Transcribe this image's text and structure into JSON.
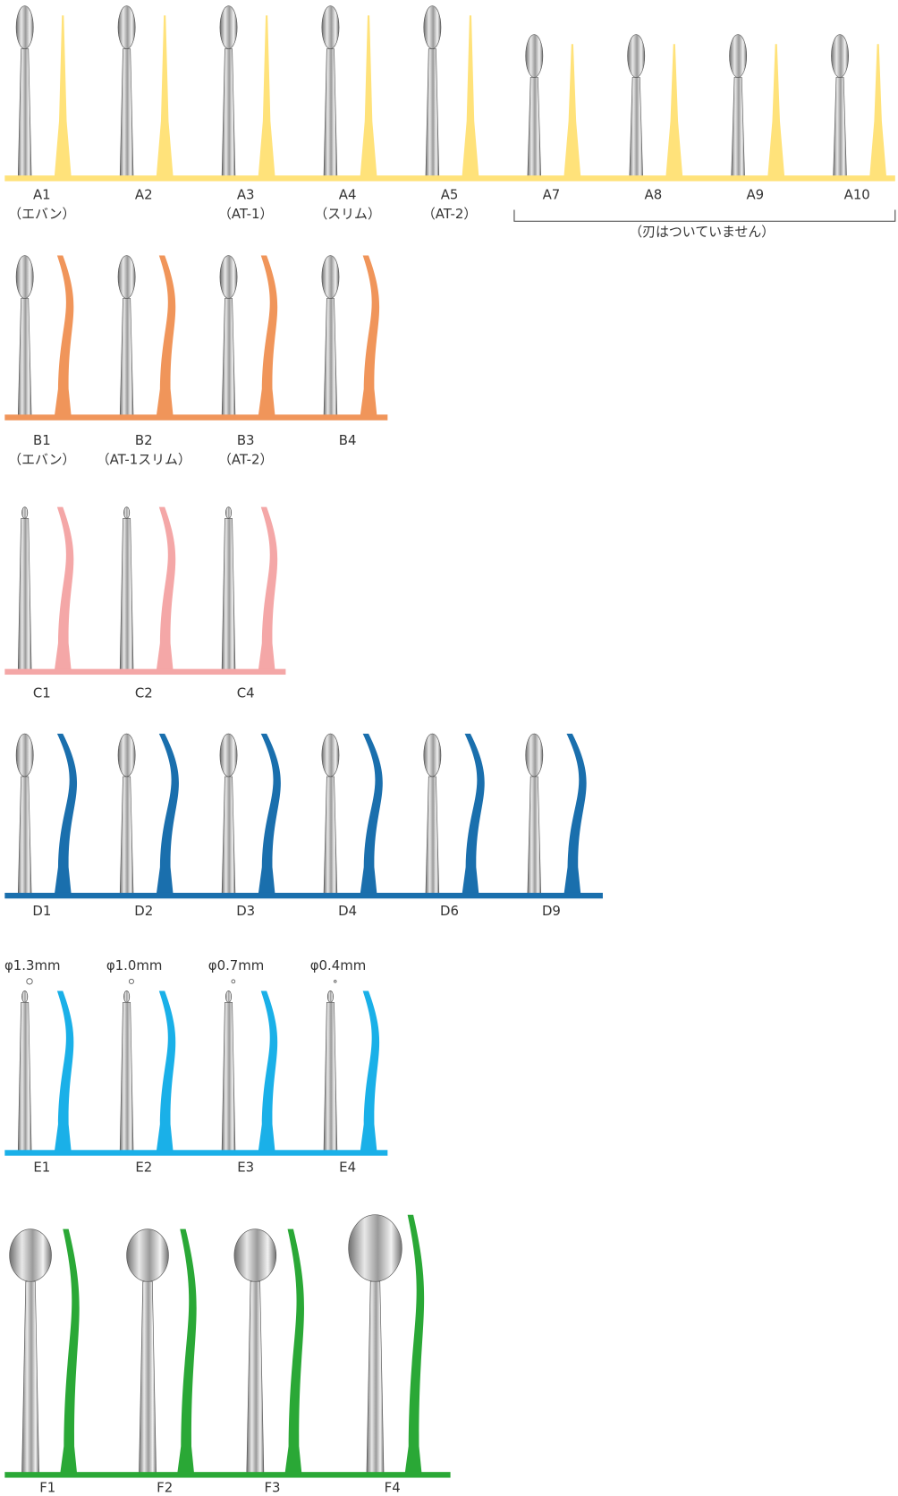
{
  "groups": [
    {
      "name": "A",
      "color": "#ffe27a",
      "items": [
        {
          "label": "A1",
          "sublabel": "（エバン）"
        },
        {
          "label": "A2"
        },
        {
          "label": "A3",
          "sublabel": "（AT-1）"
        },
        {
          "label": "A4",
          "sublabel": "（スリム）"
        },
        {
          "label": "A5",
          "sublabel": "（AT-2）"
        },
        {
          "label": "A7"
        },
        {
          "label": "A8"
        },
        {
          "label": "A9"
        },
        {
          "label": "A10"
        }
      ],
      "note": "（刃はついていません）"
    },
    {
      "name": "B",
      "color": "#f0955a",
      "items": [
        {
          "label": "B1",
          "sublabel": "（エバン）"
        },
        {
          "label": "B2",
          "sublabel": "（AT-1スリム）"
        },
        {
          "label": "B3",
          "sublabel": "（AT-2）"
        },
        {
          "label": "B4"
        }
      ]
    },
    {
      "name": "C",
      "color": "#f4a7a7",
      "items": [
        {
          "label": "C1"
        },
        {
          "label": "C2"
        },
        {
          "label": "C4"
        }
      ]
    },
    {
      "name": "D",
      "color": "#1a6fad",
      "items": [
        {
          "label": "D1"
        },
        {
          "label": "D2"
        },
        {
          "label": "D3"
        },
        {
          "label": "D4"
        },
        {
          "label": "D6"
        },
        {
          "label": "D9"
        }
      ]
    },
    {
      "name": "E",
      "color": "#1ab0e8",
      "items": [
        {
          "label": "E1",
          "diameter": "φ1.3mm"
        },
        {
          "label": "E2",
          "diameter": "φ1.0mm"
        },
        {
          "label": "E3",
          "diameter": "φ0.7mm"
        },
        {
          "label": "E4",
          "diameter": "φ0.4mm"
        }
      ]
    },
    {
      "name": "F",
      "color": "#2aa836",
      "items": [
        {
          "label": "F1"
        },
        {
          "label": "F2"
        },
        {
          "label": "F3"
        },
        {
          "label": "F4"
        }
      ]
    }
  ]
}
